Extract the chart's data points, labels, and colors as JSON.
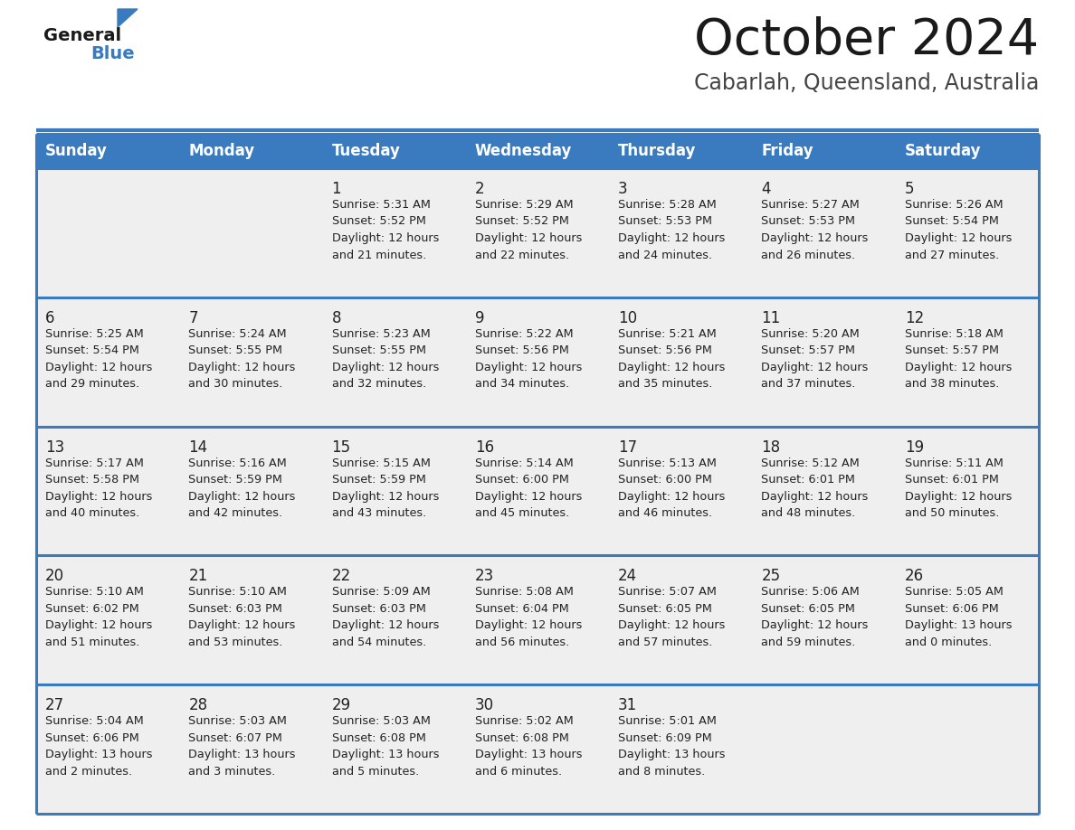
{
  "title": "October 2024",
  "subtitle": "Cabarlah, Queensland, Australia",
  "header_color": "#3a7abf",
  "header_text_color": "#ffffff",
  "row_bg_color": "#efefef",
  "border_color": "#3a7abf",
  "text_color": "#222222",
  "days_of_week": [
    "Sunday",
    "Monday",
    "Tuesday",
    "Wednesday",
    "Thursday",
    "Friday",
    "Saturday"
  ],
  "weeks": [
    [
      {
        "day": "",
        "info": ""
      },
      {
        "day": "",
        "info": ""
      },
      {
        "day": "1",
        "info": "Sunrise: 5:31 AM\nSunset: 5:52 PM\nDaylight: 12 hours\nand 21 minutes."
      },
      {
        "day": "2",
        "info": "Sunrise: 5:29 AM\nSunset: 5:52 PM\nDaylight: 12 hours\nand 22 minutes."
      },
      {
        "day": "3",
        "info": "Sunrise: 5:28 AM\nSunset: 5:53 PM\nDaylight: 12 hours\nand 24 minutes."
      },
      {
        "day": "4",
        "info": "Sunrise: 5:27 AM\nSunset: 5:53 PM\nDaylight: 12 hours\nand 26 minutes."
      },
      {
        "day": "5",
        "info": "Sunrise: 5:26 AM\nSunset: 5:54 PM\nDaylight: 12 hours\nand 27 minutes."
      }
    ],
    [
      {
        "day": "6",
        "info": "Sunrise: 5:25 AM\nSunset: 5:54 PM\nDaylight: 12 hours\nand 29 minutes."
      },
      {
        "day": "7",
        "info": "Sunrise: 5:24 AM\nSunset: 5:55 PM\nDaylight: 12 hours\nand 30 minutes."
      },
      {
        "day": "8",
        "info": "Sunrise: 5:23 AM\nSunset: 5:55 PM\nDaylight: 12 hours\nand 32 minutes."
      },
      {
        "day": "9",
        "info": "Sunrise: 5:22 AM\nSunset: 5:56 PM\nDaylight: 12 hours\nand 34 minutes."
      },
      {
        "day": "10",
        "info": "Sunrise: 5:21 AM\nSunset: 5:56 PM\nDaylight: 12 hours\nand 35 minutes."
      },
      {
        "day": "11",
        "info": "Sunrise: 5:20 AM\nSunset: 5:57 PM\nDaylight: 12 hours\nand 37 minutes."
      },
      {
        "day": "12",
        "info": "Sunrise: 5:18 AM\nSunset: 5:57 PM\nDaylight: 12 hours\nand 38 minutes."
      }
    ],
    [
      {
        "day": "13",
        "info": "Sunrise: 5:17 AM\nSunset: 5:58 PM\nDaylight: 12 hours\nand 40 minutes."
      },
      {
        "day": "14",
        "info": "Sunrise: 5:16 AM\nSunset: 5:59 PM\nDaylight: 12 hours\nand 42 minutes."
      },
      {
        "day": "15",
        "info": "Sunrise: 5:15 AM\nSunset: 5:59 PM\nDaylight: 12 hours\nand 43 minutes."
      },
      {
        "day": "16",
        "info": "Sunrise: 5:14 AM\nSunset: 6:00 PM\nDaylight: 12 hours\nand 45 minutes."
      },
      {
        "day": "17",
        "info": "Sunrise: 5:13 AM\nSunset: 6:00 PM\nDaylight: 12 hours\nand 46 minutes."
      },
      {
        "day": "18",
        "info": "Sunrise: 5:12 AM\nSunset: 6:01 PM\nDaylight: 12 hours\nand 48 minutes."
      },
      {
        "day": "19",
        "info": "Sunrise: 5:11 AM\nSunset: 6:01 PM\nDaylight: 12 hours\nand 50 minutes."
      }
    ],
    [
      {
        "day": "20",
        "info": "Sunrise: 5:10 AM\nSunset: 6:02 PM\nDaylight: 12 hours\nand 51 minutes."
      },
      {
        "day": "21",
        "info": "Sunrise: 5:10 AM\nSunset: 6:03 PM\nDaylight: 12 hours\nand 53 minutes."
      },
      {
        "day": "22",
        "info": "Sunrise: 5:09 AM\nSunset: 6:03 PM\nDaylight: 12 hours\nand 54 minutes."
      },
      {
        "day": "23",
        "info": "Sunrise: 5:08 AM\nSunset: 6:04 PM\nDaylight: 12 hours\nand 56 minutes."
      },
      {
        "day": "24",
        "info": "Sunrise: 5:07 AM\nSunset: 6:05 PM\nDaylight: 12 hours\nand 57 minutes."
      },
      {
        "day": "25",
        "info": "Sunrise: 5:06 AM\nSunset: 6:05 PM\nDaylight: 12 hours\nand 59 minutes."
      },
      {
        "day": "26",
        "info": "Sunrise: 5:05 AM\nSunset: 6:06 PM\nDaylight: 13 hours\nand 0 minutes."
      }
    ],
    [
      {
        "day": "27",
        "info": "Sunrise: 5:04 AM\nSunset: 6:06 PM\nDaylight: 13 hours\nand 2 minutes."
      },
      {
        "day": "28",
        "info": "Sunrise: 5:03 AM\nSunset: 6:07 PM\nDaylight: 13 hours\nand 3 minutes."
      },
      {
        "day": "29",
        "info": "Sunrise: 5:03 AM\nSunset: 6:08 PM\nDaylight: 13 hours\nand 5 minutes."
      },
      {
        "day": "30",
        "info": "Sunrise: 5:02 AM\nSunset: 6:08 PM\nDaylight: 13 hours\nand 6 minutes."
      },
      {
        "day": "31",
        "info": "Sunrise: 5:01 AM\nSunset: 6:09 PM\nDaylight: 13 hours\nand 8 minutes."
      },
      {
        "day": "",
        "info": ""
      },
      {
        "day": "",
        "info": ""
      }
    ]
  ]
}
